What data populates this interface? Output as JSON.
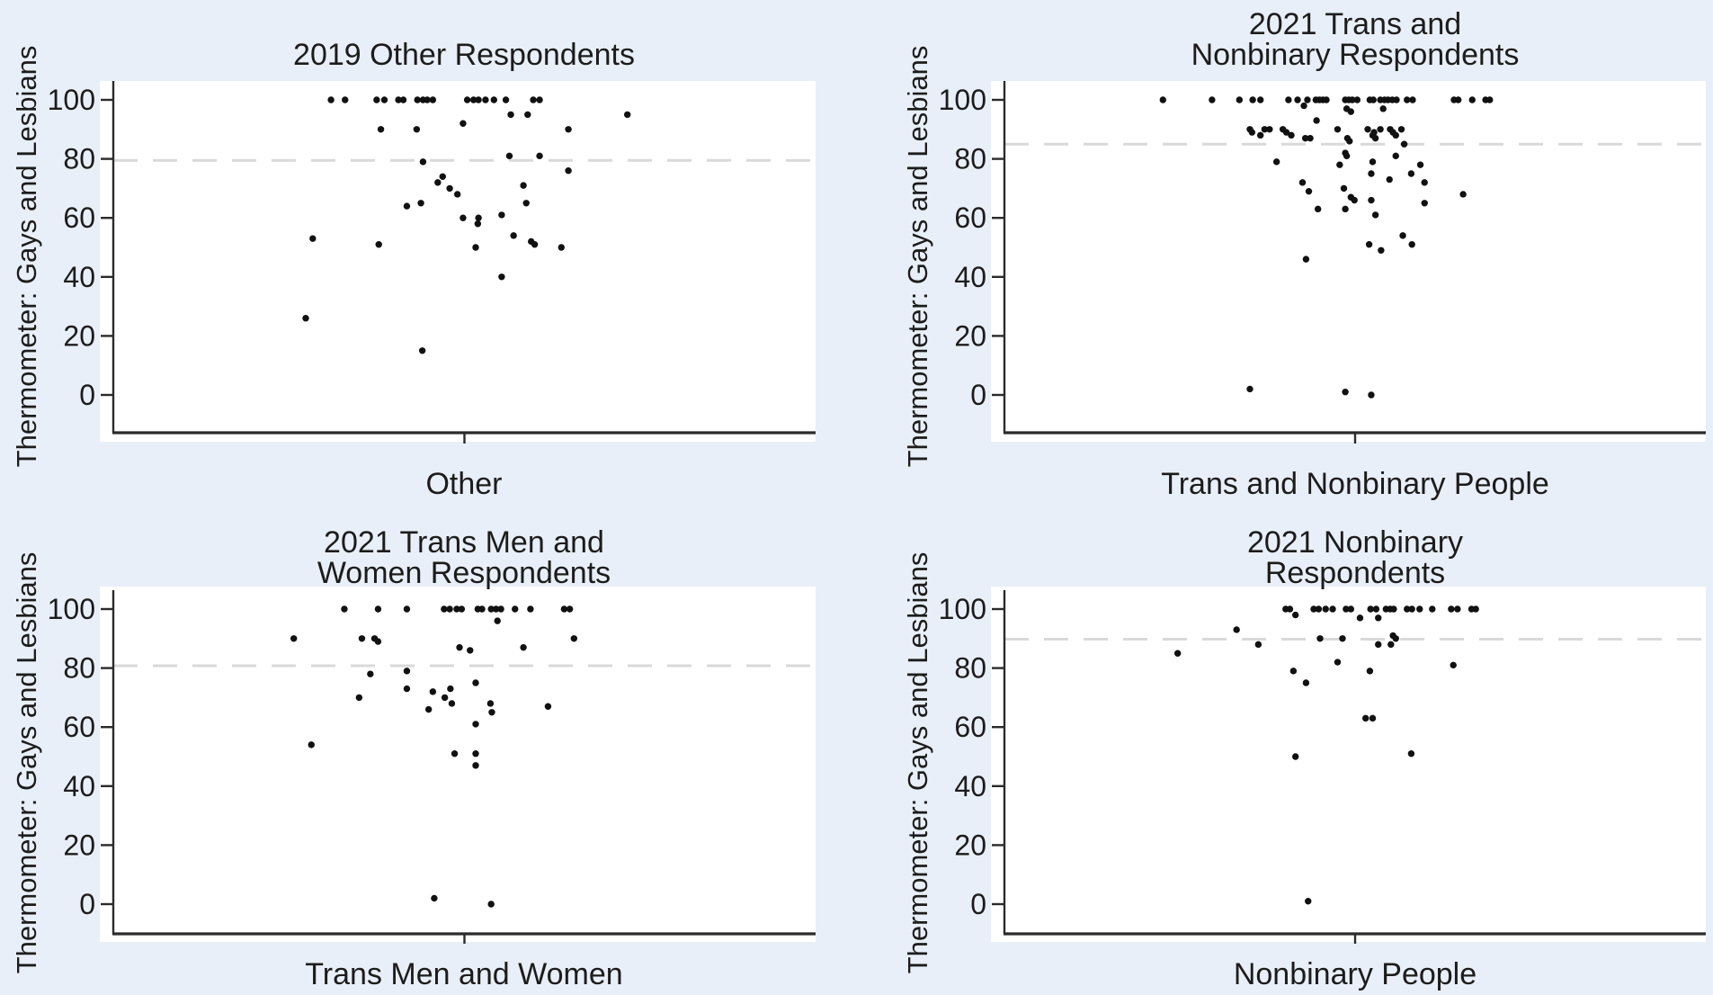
{
  "figure": {
    "background_color": "#e9eff8",
    "plot_background_color": "#ffffff",
    "axis_color": "#2b2b2b",
    "refline_color": "#d9d9d9",
    "dot_color": "#111111",
    "ylabel": "Thermometer: Gays and Lesbians",
    "yticks": [
      100,
      80,
      60,
      40,
      20,
      0
    ]
  },
  "chart_data": [
    {
      "type": "scatter",
      "title": "2019 Other Respondents",
      "title_line1": "",
      "title_line2": "2019 Other Respondents",
      "xlabel": "Other",
      "ylabel": "Thermometer: Gays and Lesbians",
      "ylim": [
        0,
        100
      ],
      "yticks": [
        100,
        80,
        60,
        40,
        20,
        0
      ],
      "refline": 79.5,
      "points": [
        [
          0.31,
          100
        ],
        [
          0.33,
          100
        ],
        [
          0.375,
          100
        ],
        [
          0.386,
          100
        ],
        [
          0.406,
          100
        ],
        [
          0.413,
          100
        ],
        [
          0.433,
          100
        ],
        [
          0.441,
          100
        ],
        [
          0.447,
          100
        ],
        [
          0.455,
          100
        ],
        [
          0.504,
          100
        ],
        [
          0.513,
          100
        ],
        [
          0.52,
          100
        ],
        [
          0.53,
          100
        ],
        [
          0.542,
          100
        ],
        [
          0.559,
          100
        ],
        [
          0.598,
          100
        ],
        [
          0.607,
          100
        ],
        [
          0.566,
          95
        ],
        [
          0.59,
          95
        ],
        [
          0.732,
          95
        ],
        [
          0.498,
          92
        ],
        [
          0.381,
          90
        ],
        [
          0.432,
          90
        ],
        [
          0.648,
          90
        ],
        [
          0.564,
          81
        ],
        [
          0.607,
          81
        ],
        [
          0.441,
          79
        ],
        [
          0.648,
          76
        ],
        [
          0.469,
          74
        ],
        [
          0.462,
          72
        ],
        [
          0.584,
          71
        ],
        [
          0.479,
          70
        ],
        [
          0.49,
          68
        ],
        [
          0.438,
          65
        ],
        [
          0.588,
          65
        ],
        [
          0.418,
          64
        ],
        [
          0.553,
          61
        ],
        [
          0.498,
          60
        ],
        [
          0.52,
          60
        ],
        [
          0.519,
          58
        ],
        [
          0.57,
          54
        ],
        [
          0.284,
          53
        ],
        [
          0.595,
          52
        ],
        [
          0.378,
          51
        ],
        [
          0.6,
          51
        ],
        [
          0.516,
          50
        ],
        [
          0.638,
          50
        ],
        [
          0.553,
          40
        ],
        [
          0.274,
          26
        ],
        [
          0.44,
          15
        ]
      ]
    },
    {
      "type": "scatter",
      "title": "2021 Trans and Nonbinary Respondents",
      "title_line1": "2021 Trans and",
      "title_line2": "Nonbinary Respondents",
      "xlabel": "Trans and Nonbinary People",
      "ylabel": "Thermometer: Gays and Lesbians",
      "ylim": [
        0,
        100
      ],
      "yticks": [
        100,
        80,
        60,
        40,
        20,
        0
      ],
      "refline": 85,
      "points": [
        [
          0.226,
          100
        ],
        [
          0.296,
          100
        ],
        [
          0.335,
          100
        ],
        [
          0.354,
          100
        ],
        [
          0.365,
          100
        ],
        [
          0.405,
          100
        ],
        [
          0.418,
          100
        ],
        [
          0.432,
          100
        ],
        [
          0.444,
          100
        ],
        [
          0.449,
          100
        ],
        [
          0.454,
          100
        ],
        [
          0.459,
          100
        ],
        [
          0.486,
          100
        ],
        [
          0.491,
          100
        ],
        [
          0.496,
          100
        ],
        [
          0.503,
          100
        ],
        [
          0.521,
          100
        ],
        [
          0.526,
          100
        ],
        [
          0.536,
          100
        ],
        [
          0.542,
          100
        ],
        [
          0.547,
          100
        ],
        [
          0.553,
          100
        ],
        [
          0.559,
          100
        ],
        [
          0.574,
          100
        ],
        [
          0.582,
          100
        ],
        [
          0.641,
          100
        ],
        [
          0.647,
          100
        ],
        [
          0.667,
          100
        ],
        [
          0.686,
          100
        ],
        [
          0.692,
          100
        ],
        [
          0.427,
          98
        ],
        [
          0.488,
          97
        ],
        [
          0.54,
          97
        ],
        [
          0.494,
          96
        ],
        [
          0.445,
          93
        ],
        [
          0.35,
          90
        ],
        [
          0.371,
          90
        ],
        [
          0.378,
          90
        ],
        [
          0.397,
          90
        ],
        [
          0.475,
          90
        ],
        [
          0.518,
          90
        ],
        [
          0.536,
          90
        ],
        [
          0.55,
          90
        ],
        [
          0.566,
          90
        ],
        [
          0.353,
          89
        ],
        [
          0.402,
          89
        ],
        [
          0.527,
          89
        ],
        [
          0.554,
          89
        ],
        [
          0.365,
          88
        ],
        [
          0.409,
          88
        ],
        [
          0.525,
          88
        ],
        [
          0.558,
          88
        ],
        [
          0.429,
          87
        ],
        [
          0.436,
          87
        ],
        [
          0.489,
          87
        ],
        [
          0.529,
          87
        ],
        [
          0.492,
          86
        ],
        [
          0.57,
          85
        ],
        [
          0.486,
          82
        ],
        [
          0.488,
          81
        ],
        [
          0.558,
          81
        ],
        [
          0.388,
          79
        ],
        [
          0.525,
          79
        ],
        [
          0.478,
          78
        ],
        [
          0.593,
          78
        ],
        [
          0.523,
          75
        ],
        [
          0.58,
          75
        ],
        [
          0.549,
          73
        ],
        [
          0.425,
          72
        ],
        [
          0.599,
          72
        ],
        [
          0.484,
          70
        ],
        [
          0.434,
          69
        ],
        [
          0.654,
          68
        ],
        [
          0.494,
          67
        ],
        [
          0.499,
          66
        ],
        [
          0.523,
          66
        ],
        [
          0.599,
          65
        ],
        [
          0.447,
          63
        ],
        [
          0.486,
          63
        ],
        [
          0.529,
          61
        ],
        [
          0.568,
          54
        ],
        [
          0.52,
          51
        ],
        [
          0.581,
          51
        ],
        [
          0.537,
          49
        ],
        [
          0.43,
          46
        ],
        [
          0.35,
          2
        ],
        [
          0.486,
          1
        ],
        [
          0.523,
          0
        ]
      ]
    },
    {
      "type": "scatter",
      "title": "2021 Trans Men and Women Respondents",
      "title_line1": "2021 Trans Men and",
      "title_line2": "Women Respondents",
      "xlabel": "Trans Men and Women",
      "ylabel": "Thermometer: Gays and Lesbians",
      "ylim": [
        0,
        100
      ],
      "yticks": [
        100,
        80,
        60,
        40,
        20,
        0
      ],
      "refline": 80.8,
      "points": [
        [
          0.329,
          100
        ],
        [
          0.377,
          100
        ],
        [
          0.418,
          100
        ],
        [
          0.471,
          100
        ],
        [
          0.479,
          100
        ],
        [
          0.489,
          100
        ],
        [
          0.496,
          100
        ],
        [
          0.519,
          100
        ],
        [
          0.525,
          100
        ],
        [
          0.538,
          100
        ],
        [
          0.545,
          100
        ],
        [
          0.552,
          100
        ],
        [
          0.572,
          100
        ],
        [
          0.594,
          100
        ],
        [
          0.642,
          100
        ],
        [
          0.65,
          100
        ],
        [
          0.547,
          96
        ],
        [
          0.257,
          90
        ],
        [
          0.354,
          90
        ],
        [
          0.372,
          90
        ],
        [
          0.656,
          90
        ],
        [
          0.377,
          89
        ],
        [
          0.493,
          87
        ],
        [
          0.584,
          87
        ],
        [
          0.508,
          86
        ],
        [
          0.418,
          79
        ],
        [
          0.366,
          78
        ],
        [
          0.516,
          75
        ],
        [
          0.418,
          73
        ],
        [
          0.48,
          73
        ],
        [
          0.455,
          72
        ],
        [
          0.35,
          70
        ],
        [
          0.472,
          70
        ],
        [
          0.482,
          68
        ],
        [
          0.537,
          68
        ],
        [
          0.619,
          67
        ],
        [
          0.449,
          66
        ],
        [
          0.539,
          65
        ],
        [
          0.516,
          61
        ],
        [
          0.282,
          54
        ],
        [
          0.486,
          51
        ],
        [
          0.516,
          51
        ],
        [
          0.516,
          47
        ],
        [
          0.457,
          2
        ],
        [
          0.538,
          0
        ]
      ]
    },
    {
      "type": "scatter",
      "title": "2021 Nonbinary Respondents",
      "title_line1": "2021 Nonbinary",
      "title_line2": "Respondents",
      "xlabel": "Nonbinary People",
      "ylabel": "Thermometer: Gays and Lesbians",
      "ylim": [
        0,
        100
      ],
      "yticks": [
        100,
        80,
        60,
        40,
        20,
        0
      ],
      "refline": 89.8,
      "points": [
        [
          0.401,
          100
        ],
        [
          0.407,
          100
        ],
        [
          0.441,
          100
        ],
        [
          0.448,
          100
        ],
        [
          0.458,
          100
        ],
        [
          0.468,
          100
        ],
        [
          0.487,
          100
        ],
        [
          0.494,
          100
        ],
        [
          0.522,
          100
        ],
        [
          0.53,
          100
        ],
        [
          0.544,
          100
        ],
        [
          0.55,
          100
        ],
        [
          0.555,
          100
        ],
        [
          0.574,
          100
        ],
        [
          0.581,
          100
        ],
        [
          0.592,
          100
        ],
        [
          0.61,
          100
        ],
        [
          0.637,
          100
        ],
        [
          0.646,
          100
        ],
        [
          0.666,
          100
        ],
        [
          0.672,
          100
        ],
        [
          0.415,
          98
        ],
        [
          0.507,
          97
        ],
        [
          0.533,
          97
        ],
        [
          0.331,
          93
        ],
        [
          0.554,
          91
        ],
        [
          0.45,
          90
        ],
        [
          0.482,
          90
        ],
        [
          0.558,
          90
        ],
        [
          0.362,
          88
        ],
        [
          0.533,
          88
        ],
        [
          0.551,
          88
        ],
        [
          0.247,
          85
        ],
        [
          0.475,
          82
        ],
        [
          0.64,
          81
        ],
        [
          0.412,
          79
        ],
        [
          0.521,
          79
        ],
        [
          0.43,
          75
        ],
        [
          0.515,
          63
        ],
        [
          0.525,
          63
        ],
        [
          0.415,
          50
        ],
        [
          0.58,
          51
        ],
        [
          0.433,
          1
        ]
      ]
    }
  ]
}
